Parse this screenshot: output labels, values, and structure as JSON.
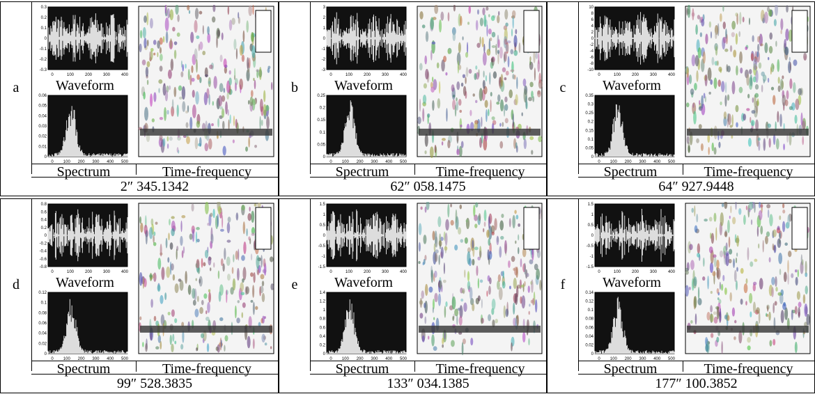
{
  "panels": [
    {
      "letter": "a",
      "waveform_label": "Waveform",
      "spectrum_label": "Spectrum",
      "tf_label": "Time-frequency",
      "caption": "2″ 345.1342",
      "waveform_yticks": [
        "0.3",
        "0.2",
        "0.1",
        "0",
        "-0.1",
        "-0.2",
        "-0.3"
      ],
      "waveform_xticks": [
        "0",
        "100",
        "200",
        "300",
        "400"
      ],
      "spectrum_yticks": [
        "0.06",
        "0.05",
        "0.04",
        "0.03",
        "0.02",
        "0.01",
        "0"
      ],
      "spectrum_xticks": [
        "0",
        "100",
        "200",
        "300",
        "400",
        "500"
      ]
    },
    {
      "letter": "b",
      "waveform_label": "Waveform",
      "spectrum_label": "Spectrum",
      "tf_label": "Time-frequency",
      "caption": "62″ 058.1475",
      "waveform_yticks": [
        "3",
        "2",
        "1",
        "0",
        "-1",
        "-2",
        "-3"
      ],
      "waveform_xticks": [
        "0",
        "100",
        "200",
        "300",
        "400"
      ],
      "spectrum_yticks": [
        "0.25",
        "0.2",
        "0.15",
        "0.1",
        "0.05",
        "0"
      ],
      "spectrum_xticks": [
        "0",
        "100",
        "200",
        "300",
        "400",
        "500"
      ]
    },
    {
      "letter": "c",
      "waveform_label": "Waveform",
      "spectrum_label": "Spectrum",
      "tf_label": "Time-frequency",
      "caption": "64″ 927.9448",
      "waveform_yticks": [
        "10",
        "8",
        "6",
        "4",
        "2",
        "0",
        "-2",
        "-4",
        "-6",
        "-8",
        "-10"
      ],
      "waveform_xticks": [
        "0",
        "100",
        "200",
        "300",
        "400"
      ],
      "spectrum_yticks": [
        "0.35",
        "0.3",
        "0.25",
        "0.2",
        "0.15",
        "0.1",
        "0.05",
        "0"
      ],
      "spectrum_xticks": [
        "0",
        "100",
        "200",
        "300",
        "400",
        "500"
      ]
    },
    {
      "letter": "d",
      "waveform_label": "Waveform",
      "spectrum_label": "Spectrum",
      "tf_label": "Time-frequency",
      "caption": "99″ 528.3835",
      "waveform_yticks": [
        "0.8",
        "0.6",
        "0.4",
        "0.2",
        "0",
        "-0.2",
        "-0.4",
        "-0.6",
        "-0.8"
      ],
      "waveform_xticks": [
        "0",
        "100",
        "200",
        "300",
        "400"
      ],
      "spectrum_yticks": [
        "0.12",
        "0.1",
        "0.08",
        "0.06",
        "0.04",
        "0.02",
        "0"
      ],
      "spectrum_xticks": [
        "0",
        "100",
        "200",
        "300",
        "400",
        "500"
      ]
    },
    {
      "letter": "e",
      "waveform_label": "Waveform",
      "spectrum_label": "Spectrum",
      "tf_label": "Time-frequency",
      "caption": "133″ 034.1385",
      "waveform_yticks": [
        "1.5",
        "1",
        "0.5",
        "0",
        "-0.5",
        "-1",
        "-1.5"
      ],
      "waveform_xticks": [
        "0",
        "100",
        "200",
        "300",
        "400"
      ],
      "spectrum_yticks": [
        "1.4",
        "1.2",
        "1",
        "0.8",
        "0.6",
        "0.4",
        "0.2",
        "0"
      ],
      "spectrum_xticks": [
        "0",
        "100",
        "200",
        "300",
        "400",
        "500"
      ]
    },
    {
      "letter": "f",
      "waveform_label": "Waveform",
      "spectrum_label": "Spectrum",
      "tf_label": "Time-frequency",
      "caption": "177″ 100.3852",
      "waveform_yticks": [
        "1.5",
        "1",
        "0.5",
        "0",
        "-0.5",
        "-1",
        "-1.5"
      ],
      "waveform_xticks": [
        "0",
        "100",
        "200",
        "300",
        "400"
      ],
      "spectrum_yticks": [
        "0.14",
        "0.12",
        "0.1",
        "0.08",
        "0.06",
        "0.04",
        "0.02",
        "0"
      ],
      "spectrum_xticks": [
        "0",
        "100",
        "200",
        "300",
        "400",
        "500"
      ]
    }
  ]
}
